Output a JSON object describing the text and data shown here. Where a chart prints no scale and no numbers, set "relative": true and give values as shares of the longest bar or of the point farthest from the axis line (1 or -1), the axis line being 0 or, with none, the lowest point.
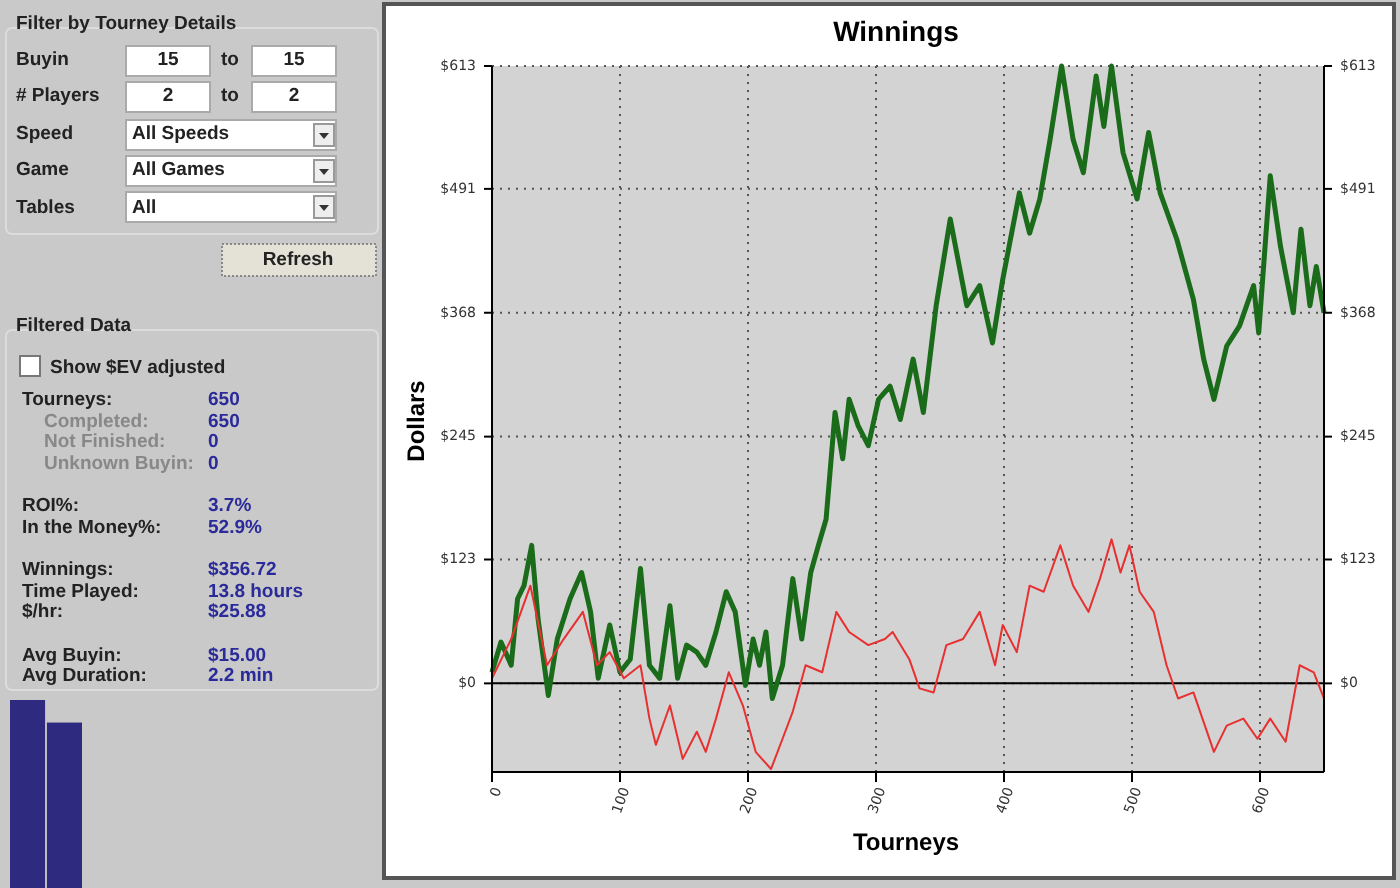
{
  "chart_data": [
    {
      "type": "other",
      "annotations": [
        "Filter by Tourney Details",
        "Buyin",
        "15",
        "to",
        "15",
        "# Players",
        "2",
        "to",
        "2",
        "Speed",
        "All Speeds",
        "Game",
        "All Games",
        "Tables",
        "All",
        "Refresh",
        "Filtered Data",
        "Show $EV adjusted",
        "Tourneys:",
        "650",
        "Completed:",
        "650",
        "Not Finished:",
        "0",
        "Unknown Buyin:",
        "0",
        "ROI%:",
        "3.7%",
        "In the Money%:",
        "52.9%",
        "Winnings:",
        "$356.72",
        "Time Played:",
        "13.8 hours",
        "$/hr:",
        "$25.88",
        "Avg Buyin:",
        "$15.00",
        "Avg Duration:",
        "2.2 min"
      ]
    },
    {
      "type": "bar",
      "relative": true,
      "categories": [
        null,
        null
      ],
      "values": [
        1,
        0.88
      ],
      "color": "#2e2a7f"
    },
    {
      "type": "line",
      "title": "Winnings",
      "xlabel": "Tourneys",
      "ylabel": "Dollars",
      "xlim": [
        0,
        650
      ],
      "xticks": [
        0,
        100,
        200,
        300,
        400,
        500,
        600
      ],
      "ylim": [
        -88,
        613
      ],
      "yticks": [
        {
          "value": 0,
          "label": "$0"
        },
        {
          "value": 123,
          "label": "$123"
        },
        {
          "value": 245,
          "label": "$245"
        },
        {
          "value": 368,
          "label": "$368"
        },
        {
          "value": 491,
          "label": "$491"
        },
        {
          "value": 613,
          "label": "$613"
        }
      ],
      "y2lim": [
        -88,
        613
      ],
      "y2ticks": [
        {
          "value": 0,
          "label": "$0"
        },
        {
          "value": 123,
          "label": "$123"
        },
        {
          "value": 245,
          "label": "$245"
        },
        {
          "value": 368,
          "label": "$368"
        },
        {
          "value": 491,
          "label": "$491"
        },
        {
          "value": 613,
          "label": "$613"
        }
      ],
      "grid": true,
      "line_style": "solid",
      "ref_lines": [
        {
          "axis": "y",
          "value": 0,
          "color": "#000000"
        }
      ],
      "series": [
        {
          "color": "#1a6b1a",
          "x": [
            0,
            7,
            15,
            20,
            25,
            31,
            36,
            44,
            51,
            61,
            70,
            77,
            83,
            92,
            100,
            108,
            116,
            123,
            131,
            139,
            145,
            152,
            160,
            167,
            175,
            183,
            190,
            198,
            204,
            209,
            214,
            219,
            227,
            235,
            242,
            249,
            255,
            261,
            268,
            274,
            279,
            286,
            294,
            302,
            311,
            319,
            329,
            337,
            347,
            358,
            371,
            381,
            391,
            399,
            412,
            420,
            428,
            436,
            445,
            454,
            462,
            472,
            478,
            484,
            493,
            504,
            513,
            522,
            535,
            548,
            556,
            564,
            574,
            584,
            595,
            599,
            608,
            616,
            626,
            632,
            639,
            644,
            650
          ],
          "values": [
            11,
            41,
            18,
            84,
            97,
            137,
            64,
            -12,
            44,
            84,
            110,
            71,
            5,
            58,
            11,
            24,
            114,
            18,
            5,
            77,
            5,
            38,
            31,
            18,
            51,
            91,
            71,
            -2,
            44,
            18,
            51,
            -15,
            18,
            104,
            44,
            110,
            137,
            163,
            269,
            223,
            282,
            256,
            236,
            282,
            295,
            262,
            322,
            269,
            375,
            461,
            375,
            395,
            338,
            401,
            487,
            447,
            481,
            540,
            613,
            540,
            507,
            603,
            553,
            613,
            527,
            481,
            547,
            487,
            441,
            381,
            322,
            282,
            335,
            355,
            395,
            348,
            504,
            434,
            368,
            451,
            375,
            414,
            368
          ]
        },
        {
          "color": "#e83030",
          "x": [
            0,
            15,
            30,
            43,
            56,
            71,
            82,
            92,
            103,
            116,
            123,
            128,
            139,
            149,
            160,
            167,
            175,
            185,
            196,
            206,
            218,
            227,
            235,
            245,
            258,
            269,
            279,
            294,
            307,
            313,
            326,
            334,
            345,
            355,
            368,
            381,
            393,
            399,
            410,
            420,
            431,
            444,
            454,
            466,
            475,
            484,
            491,
            498,
            506,
            517,
            527,
            536,
            548,
            564,
            574,
            587,
            598,
            608,
            620,
            631,
            642,
            650
          ],
          "values": [
            5,
            44,
            97,
            18,
            44,
            71,
            18,
            31,
            5,
            18,
            -35,
            -61,
            -22,
            -75,
            -48,
            -68,
            -35,
            11,
            -22,
            -68,
            -85,
            -55,
            -28,
            18,
            11,
            71,
            51,
            38,
            44,
            51,
            24,
            -5,
            -9,
            38,
            44,
            71,
            18,
            58,
            31,
            97,
            91,
            137,
            97,
            71,
            104,
            143,
            110,
            137,
            91,
            71,
            18,
            -15,
            -9,
            -68,
            -42,
            -35,
            -55,
            -35,
            -58,
            18,
            11,
            -15
          ]
        }
      ]
    }
  ]
}
